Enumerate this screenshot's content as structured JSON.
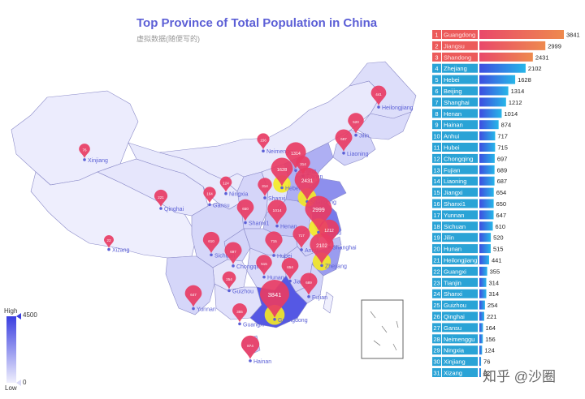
{
  "title": "Top Province of Total Population in China",
  "subtitle": "虚拟数据(随便写的)",
  "watermark": "知乎 @沙圈",
  "visual_map": {
    "high_label": "High",
    "low_label": "Low",
    "max": 4500,
    "min": 0,
    "color_high": "#3a3ee0",
    "color_low": "#efeffd"
  },
  "colors": {
    "top3": "#ec5a5a",
    "rest": "#2aa3d6",
    "bar_gradient_start": "#3d4de0",
    "bar_gradient_end": "#27b6e8",
    "top_bar_start": "#e9486a",
    "top_bar_end": "#ee8a4e",
    "pin": "#e83c64",
    "ripple": "#f5ea22"
  },
  "chart_data": {
    "type": "bar",
    "title": "Top Province of Total Population in China",
    "subtitle": "虚拟数据(随便写的)",
    "categories": [
      "Guangdong",
      "Jiangsu",
      "Shandong",
      "Zhejiang",
      "Hebei",
      "Beijing",
      "Shanghai",
      "Henan",
      "Hainan",
      "Anhui",
      "Hubei",
      "Chongqing",
      "Fujian",
      "Liaoning",
      "Jiangxi",
      "Shanxi1",
      "Yunnan",
      "Sichuan",
      "Jilin",
      "Hunan",
      "Heilongjiang",
      "Guangxi",
      "Tianjin",
      "Shanxi",
      "Guizhou",
      "Qinghai",
      "Gansu",
      "Neimenggu",
      "Ningxia",
      "Xinjiang",
      "Xizang"
    ],
    "values": [
      3841,
      2999,
      2431,
      2102,
      1628,
      1314,
      1212,
      1014,
      874,
      717,
      715,
      697,
      689,
      687,
      654,
      650,
      647,
      610,
      520,
      515,
      441,
      355,
      314,
      314,
      254,
      221,
      164,
      156,
      124,
      76,
      22
    ],
    "ranks": [
      "1",
      "2",
      "3",
      "4",
      "5",
      "6",
      "7",
      "8",
      "9",
      "10",
      "11",
      "12",
      "13",
      "14",
      "15",
      "16",
      "17",
      "18",
      "19",
      "20",
      "21",
      "22",
      "23",
      "24",
      "25",
      "26",
      "27",
      "28",
      "29",
      "30",
      "31"
    ],
    "xlim": [
      0,
      3841
    ],
    "legend": "none"
  },
  "map_labels": [
    {
      "name": "Xinjiang",
      "value": 76
    },
    {
      "name": "Xizang",
      "value": 22
    },
    {
      "name": "Qinghai",
      "value": 221
    },
    {
      "name": "Gansu",
      "value": 164
    },
    {
      "name": "Ningxia",
      "value": 124
    },
    {
      "name": "Neimenggu",
      "value": 156
    },
    {
      "name": "Heilongjiang",
      "value": 441
    },
    {
      "name": "Jilin",
      "value": 520
    },
    {
      "name": "Liaoning",
      "value": 687
    },
    {
      "name": "Beijing",
      "value": 1314
    },
    {
      "name": "Tianjin",
      "value": 314
    },
    {
      "name": "Hebei",
      "value": 1628
    },
    {
      "name": "Shandong",
      "value": 2431
    },
    {
      "name": "Shanxi",
      "value": 314
    },
    {
      "name": "Shanxi1",
      "value": 650
    },
    {
      "name": "Henan",
      "value": 1014
    },
    {
      "name": "Jiangsu",
      "value": 2999
    },
    {
      "name": "Anhui",
      "value": 717
    },
    {
      "name": "Shanghai",
      "value": 1212
    },
    {
      "name": "Zhejiang",
      "value": 2102
    },
    {
      "name": "Hubei",
      "value": 715
    },
    {
      "name": "Sichuan",
      "value": 610
    },
    {
      "name": "Chongqing",
      "value": 697
    },
    {
      "name": "Hunan",
      "value": 515
    },
    {
      "name": "Jiangxi",
      "value": 654
    },
    {
      "name": "Fujian",
      "value": 689
    },
    {
      "name": "Guizhou",
      "value": 254
    },
    {
      "name": "Yunnan",
      "value": 647
    },
    {
      "name": "Guangxi",
      "value": 355
    },
    {
      "name": "Guangdong",
      "value": 3841
    },
    {
      "name": "Hainan",
      "value": 874
    }
  ]
}
